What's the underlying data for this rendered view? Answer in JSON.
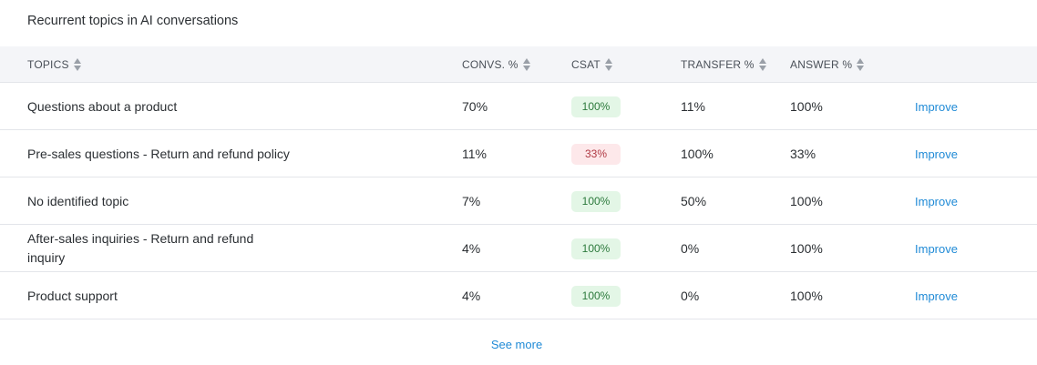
{
  "card": {
    "title": "Recurrent topics in AI conversations"
  },
  "columns": {
    "topics": "TOPICS",
    "convs": "CONVS. %",
    "csat": "CSAT",
    "transfer": "TRANSFER %",
    "answer": "ANSWER %"
  },
  "rows": [
    {
      "topic": "Questions about a product",
      "convs": "70%",
      "csat": "100%",
      "csat_status": "good",
      "transfer": "11%",
      "answer": "100%",
      "action": "Improve"
    },
    {
      "topic": "Pre-sales questions - Return and refund policy",
      "convs": "11%",
      "csat": "33%",
      "csat_status": "bad",
      "transfer": "100%",
      "answer": "33%",
      "action": "Improve"
    },
    {
      "topic": "No identified topic",
      "convs": "7%",
      "csat": "100%",
      "csat_status": "good",
      "transfer": "50%",
      "answer": "100%",
      "action": "Improve"
    },
    {
      "topic": "After-sales inquiries - Return and refund inquiry",
      "convs": "4%",
      "csat": "100%",
      "csat_status": "good",
      "transfer": "0%",
      "answer": "100%",
      "action": "Improve"
    },
    {
      "topic": "Product support",
      "convs": "4%",
      "csat": "100%",
      "csat_status": "good",
      "transfer": "0%",
      "answer": "100%",
      "action": "Improve"
    }
  ],
  "footer": {
    "see_more": "See more"
  },
  "colors": {
    "link": "#1f8ad6",
    "good_bg": "#e3f6e6",
    "bad_bg": "#fde8ea",
    "header_bg": "#f4f5f8"
  },
  "icons": {
    "sort": "sort-arrows-icon"
  }
}
